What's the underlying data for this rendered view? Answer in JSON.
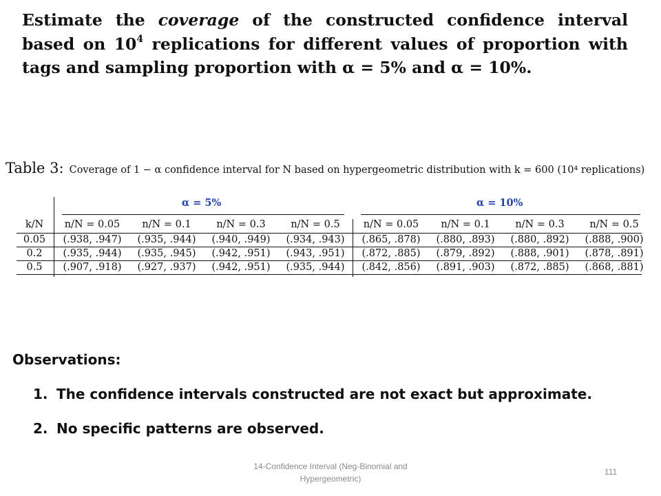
{
  "slide": {
    "heading": {
      "part1": "Estimate the ",
      "emph": "coverage",
      "part2": " of the constructed confidence interval based on 10",
      "sup": "4",
      "part3": " replications for different values of proportion with tags and sampling proportion with α = 5% and α = 10%."
    },
    "table": {
      "caption_label": "Table 3:",
      "caption_text": "Coverage of 1 − α confidence interval for N based on hypergeometric distribution with k = 600 (10⁴ replications)",
      "group_labels": [
        "α = 5%",
        "α = 10%"
      ],
      "row_header": "k/N",
      "columns": [
        "n/N = 0.05",
        "n/N = 0.1",
        "n/N = 0.3",
        "n/N = 0.5",
        "n/N = 0.05",
        "n/N = 0.1",
        "n/N = 0.3",
        "n/N = 0.5"
      ],
      "rows": [
        {
          "label": "0.05",
          "cells": [
            "(.938, .947)",
            "(.935, .944)",
            "(.940, .949)",
            "(.934, .943)",
            "(.865, .878)",
            "(.880, .893)",
            "(.880, .892)",
            "(.888, .900)"
          ]
        },
        {
          "label": "0.2",
          "cells": [
            "(.935, .944)",
            "(.935, .945)",
            "(.942, .951)",
            "(.943, .951)",
            "(.872, .885)",
            "(.879, .892)",
            "(.888, .901)",
            "(.878, .891)"
          ]
        },
        {
          "label": "0.5",
          "cells": [
            "(.907, .918)",
            "(.927, .937)",
            "(.942, .951)",
            "(.935, .944)",
            "(.842, .856)",
            "(.891, .903)",
            "(.872, .885)",
            "(.868, .881)"
          ]
        }
      ]
    },
    "observations": {
      "title": "Observations:",
      "items": [
        {
          "num": "1.",
          "text": "The confidence intervals constructed are not exact but approximate."
        },
        {
          "num": "2.",
          "text": "No specific patterns are observed."
        }
      ]
    },
    "footer": {
      "text": "14-Confidence Interval (Neg-Binomial and Hypergeometric)",
      "page_number": "111"
    },
    "colors": {
      "group_label": "#1f3fbf",
      "footer_text": "#8a8a8a"
    }
  }
}
